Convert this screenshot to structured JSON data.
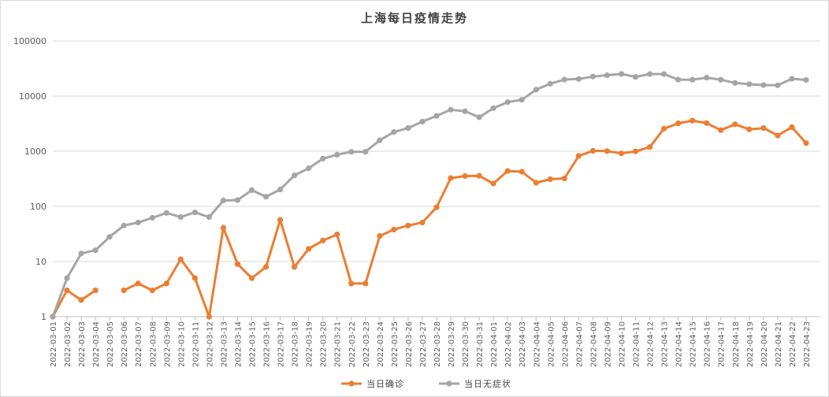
{
  "chart_data": {
    "type": "line",
    "title": "上海每日疫情走势",
    "y_scale": "log",
    "ylim": [
      1,
      100000
    ],
    "y_ticks": [
      "1",
      "10",
      "100",
      "1000",
      "10000",
      "100000"
    ],
    "grid": "horizontal",
    "legend_position": "bottom",
    "categories": [
      "2022-03-01",
      "2022-03-02",
      "2022-03-03",
      "2022-03-04",
      "2022-03-05",
      "2022-03-06",
      "2022-03-07",
      "2022-03-08",
      "2022-03-09",
      "2022-03-10",
      "2022-03-11",
      "2022-03-12",
      "2022-03-13",
      "2022-03-14",
      "2022-03-15",
      "2022-03-16",
      "2022-03-17",
      "2022-03-18",
      "2022-03-19",
      "2022-03-20",
      "2022-03-21",
      "2022-03-22",
      "2022-03-23",
      "2022-03-24",
      "2022-03-25",
      "2022-03-26",
      "2022-03-27",
      "2022-03-28",
      "2022-03-29",
      "2022-03-30",
      "2022-03-31",
      "2022-04-01",
      "2022-04-02",
      "2022-04-03",
      "2022-04-04",
      "2022-04-05",
      "2022-04-06",
      "2022-04-07",
      "2022-04-08",
      "2022-04-09",
      "2022-04-10",
      "2022-04-11",
      "2022-04-12",
      "2022-04-13",
      "2022-04-14",
      "2022-04-15",
      "2022-04-16",
      "2022-04-17",
      "2022-04-18",
      "2022-04-19",
      "2022-04-20",
      "2022-04-21",
      "2022-04-22",
      "2022-04-23"
    ],
    "series": [
      {
        "name": "当日确诊",
        "color": "#ed7d31",
        "values": [
          1,
          3,
          2,
          3,
          null,
          3,
          4,
          3,
          4,
          11,
          5,
          1,
          41,
          9,
          5,
          8,
          57,
          8,
          17,
          24,
          31,
          4,
          4,
          29,
          38,
          45,
          51,
          96,
          326,
          355,
          358,
          260,
          438,
          425,
          268,
          311,
          322,
          824,
          1015,
          1006,
          914,
          994,
          1189,
          2573,
          3200,
          3590,
          3238,
          2417,
          3084,
          2494,
          2634,
          1931,
          2736,
          1401
        ]
      },
      {
        "name": "当日无症状",
        "color": "#a5a5a5",
        "values": [
          1,
          5,
          14,
          16,
          28,
          45,
          51,
          62,
          76,
          64,
          78,
          64,
          128,
          130,
          197,
          150,
          202,
          366,
          492,
          734,
          865,
          977,
          979,
          1580,
          2231,
          2631,
          3450,
          4381,
          5656,
          5298,
          4144,
          6051,
          7788,
          8581,
          13086,
          16766,
          19982,
          20398,
          22609,
          23937,
          25173,
          22348,
          25141,
          25146,
          19872,
          19831,
          21582,
          19831,
          17332,
          16407,
          15861,
          15698,
          20634,
          19657
        ]
      }
    ]
  }
}
